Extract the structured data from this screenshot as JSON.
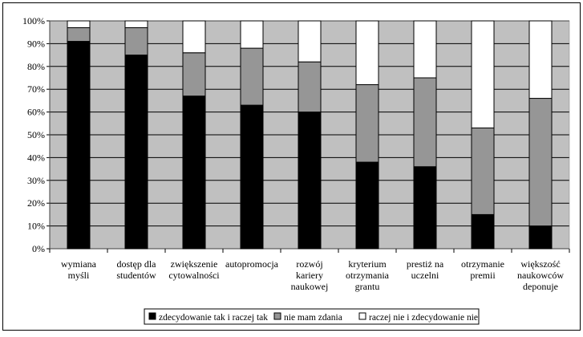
{
  "chart_data": {
    "type": "stacked-bar-100",
    "title": "",
    "xlabel": "",
    "ylabel": "",
    "ylim": [
      0,
      100
    ],
    "y_ticks": [
      "0%",
      "10%",
      "20%",
      "30%",
      "40%",
      "50%",
      "60%",
      "70%",
      "80%",
      "90%",
      "100%"
    ],
    "grid": true,
    "legend_position": "bottom",
    "categories": [
      [
        "wymiana",
        "myśli"
      ],
      [
        "dostęp dla",
        "studentów"
      ],
      [
        "zwiększenie",
        "cytowalności"
      ],
      [
        "autopromocja"
      ],
      [
        "rozwój",
        "kariery",
        "naukowej"
      ],
      [
        "kryterium",
        "otrzymania",
        "grantu"
      ],
      [
        "prestiż na",
        "uczelni"
      ],
      [
        "otrzymanie",
        "premii"
      ],
      [
        "większość",
        "naukowców",
        "deponuje"
      ]
    ],
    "series": [
      {
        "name": "zdecydowanie tak i raczej tak",
        "color": "#000000",
        "values": [
          91,
          85,
          67,
          63,
          60,
          38,
          36,
          15,
          10
        ]
      },
      {
        "name": "nie mam zdania",
        "color": "#969696",
        "values": [
          6,
          12,
          19,
          25,
          22,
          34,
          39,
          38,
          56
        ]
      },
      {
        "name": "raczej nie i zdecydowanie nie",
        "color": "#ffffff",
        "values": [
          3,
          3,
          14,
          12,
          18,
          28,
          25,
          47,
          34
        ]
      }
    ],
    "plot_background": "#c0c0c0"
  }
}
